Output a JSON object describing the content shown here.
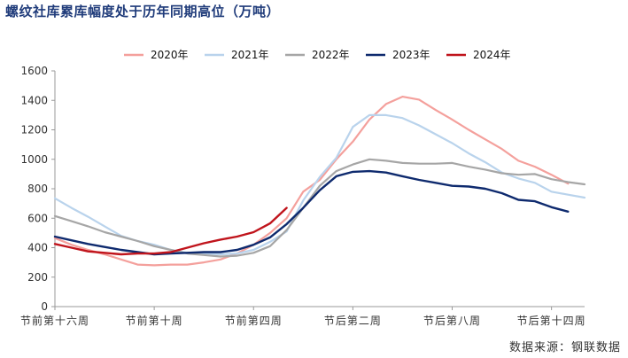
{
  "title": "螺纹社库累库幅度处于历年同期高位（万吨）",
  "source": "数据来源：钢联数据",
  "chart_data": {
    "type": "line",
    "ylim": [
      0,
      1600
    ],
    "yticks": [
      0,
      200,
      400,
      600,
      800,
      1000,
      1200,
      1400,
      1600
    ],
    "xticks": [
      {
        "index": 0,
        "label": "节前第十六周"
      },
      {
        "index": 6,
        "label": "节前第十周"
      },
      {
        "index": 12,
        "label": "节前第四周"
      },
      {
        "index": 18,
        "label": "节后第二周"
      },
      {
        "index": 24,
        "label": "节后第八周"
      },
      {
        "index": 30,
        "label": "节后第十四周"
      }
    ],
    "legend_position": "top",
    "series": [
      {
        "name": "2020年",
        "color": "#f4a09c",
        "values": [
          465,
          420,
          385,
          355,
          320,
          285,
          280,
          285,
          285,
          300,
          320,
          360,
          420,
          500,
          600,
          780,
          860,
          1000,
          1120,
          1270,
          1375,
          1425,
          1405,
          1335,
          1270,
          1200,
          1135,
          1070,
          990,
          950,
          895,
          835
        ]
      },
      {
        "name": "2021年",
        "color": "#b9d3ec",
        "values": [
          735,
          670,
          610,
          545,
          480,
          445,
          420,
          385,
          365,
          360,
          355,
          360,
          385,
          440,
          510,
          720,
          880,
          1010,
          1220,
          1300,
          1300,
          1280,
          1230,
          1170,
          1110,
          1040,
          980,
          910,
          870,
          840,
          780,
          760,
          740
        ]
      },
      {
        "name": "2022年",
        "color": "#a6a6a6",
        "values": [
          615,
          580,
          545,
          505,
          475,
          445,
          410,
          385,
          360,
          350,
          340,
          345,
          365,
          410,
          520,
          670,
          820,
          920,
          965,
          1000,
          990,
          975,
          970,
          970,
          975,
          950,
          930,
          905,
          895,
          900,
          865,
          845,
          830
        ]
      },
      {
        "name": "2023年",
        "color": "#0e2a6e",
        "values": [
          475,
          450,
          425,
          405,
          385,
          370,
          355,
          360,
          365,
          370,
          370,
          385,
          420,
          470,
          560,
          670,
          790,
          885,
          915,
          920,
          910,
          885,
          860,
          840,
          820,
          815,
          800,
          770,
          725,
          715,
          675,
          645
        ]
      },
      {
        "name": "2024年",
        "color": "#c0141c",
        "values": [
          425,
          400,
          375,
          365,
          355,
          360,
          360,
          370,
          400,
          430,
          455,
          475,
          505,
          565,
          670
        ]
      }
    ]
  }
}
